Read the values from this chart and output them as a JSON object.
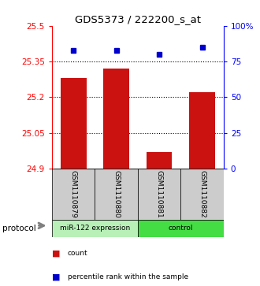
{
  "title": "GDS5373 / 222200_s_at",
  "samples": [
    "GSM1110879",
    "GSM1110880",
    "GSM1110881",
    "GSM1110882"
  ],
  "bar_values": [
    25.28,
    25.32,
    24.97,
    25.22
  ],
  "percentile_values": [
    83,
    83,
    80,
    85
  ],
  "ylim_left": [
    24.9,
    25.5
  ],
  "ylim_right": [
    0,
    100
  ],
  "yticks_left": [
    24.9,
    25.05,
    25.2,
    25.35,
    25.5
  ],
  "yticks_right": [
    0,
    25,
    50,
    75,
    100
  ],
  "hlines": [
    25.05,
    25.2,
    25.35
  ],
  "bar_color": "#cc1111",
  "dot_color": "#0000cc",
  "groups": [
    {
      "label": "miR-122 expression",
      "samples": [
        0,
        1
      ],
      "color": "#b8f0b8"
    },
    {
      "label": "control",
      "samples": [
        2,
        3
      ],
      "color": "#44dd44"
    }
  ],
  "legend_items": [
    {
      "color": "#cc1111",
      "label": "count"
    },
    {
      "color": "#0000cc",
      "label": "percentile rank within the sample"
    }
  ],
  "protocol_label": "protocol",
  "background_color": "#ffffff",
  "sample_box_color": "#cccccc"
}
